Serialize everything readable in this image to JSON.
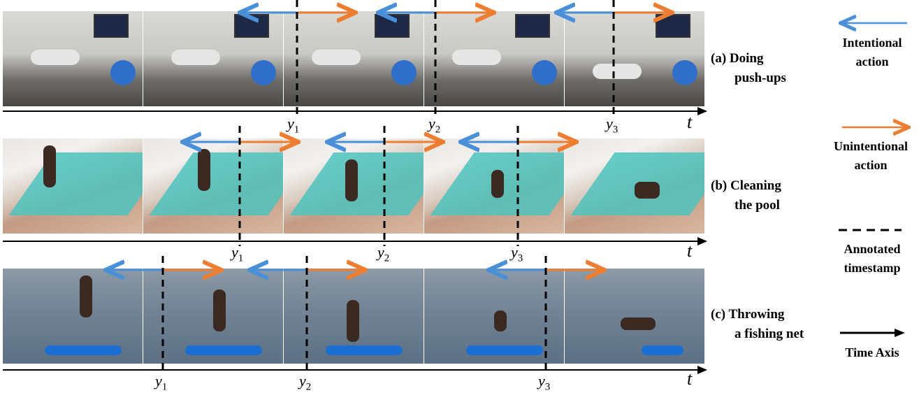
{
  "rows": [
    {
      "caption_line1": "(a) Doing",
      "caption_line2": "push-ups",
      "y1": "y",
      "y2": "y",
      "y3": "y",
      "t": "t"
    },
    {
      "caption_line1": "(b) Cleaning",
      "caption_line2": "the pool",
      "y1": "y",
      "y2": "y",
      "y3": "y",
      "t": "t"
    },
    {
      "caption_line1": "(c) Throwing",
      "caption_line2": "a fishing net",
      "y1": "y",
      "y2": "y",
      "y3": "y",
      "t": "t"
    }
  ],
  "subscripts": [
    "1",
    "2",
    "3"
  ],
  "legend": {
    "intentional_line1": "Intentional",
    "intentional_line2": "action",
    "unintentional_line1": "Unintentional",
    "unintentional_line2": "action",
    "timestamp_line1": "Annotated",
    "timestamp_line2": "timestamp",
    "time_axis": "Time Axis"
  },
  "colors": {
    "intentional": "#4a90d9",
    "unintentional": "#ed7d31",
    "timestamp": "#000000",
    "axis": "#000000"
  }
}
